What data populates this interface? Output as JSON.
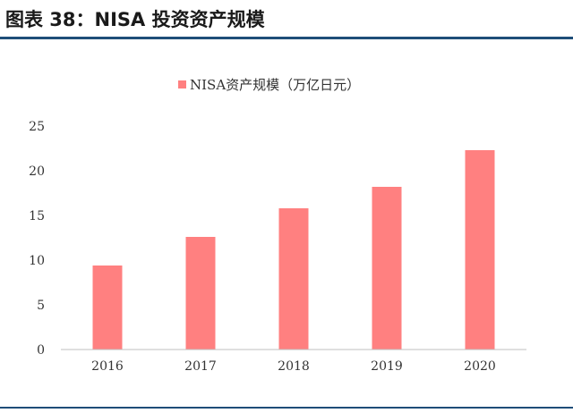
{
  "header": {
    "title": "图表 38：NISA 投资资产规模"
  },
  "colors": {
    "bar": "#ff8080",
    "header_rule": "#1f4e79",
    "axis": "#bfbfbf"
  },
  "chart_data": {
    "type": "bar",
    "title": "",
    "xlabel": "",
    "ylabel": "",
    "categories": [
      "2016",
      "2017",
      "2018",
      "2019",
      "2020"
    ],
    "series": [
      {
        "name": "NISA资产规模（万亿日元）",
        "values": [
          9.4,
          12.6,
          15.8,
          18.2,
          22.3
        ]
      }
    ],
    "ylim": [
      0,
      25
    ],
    "yticks": [
      0,
      5,
      10,
      15,
      20,
      25
    ],
    "grid": false,
    "legend": "top-center"
  }
}
